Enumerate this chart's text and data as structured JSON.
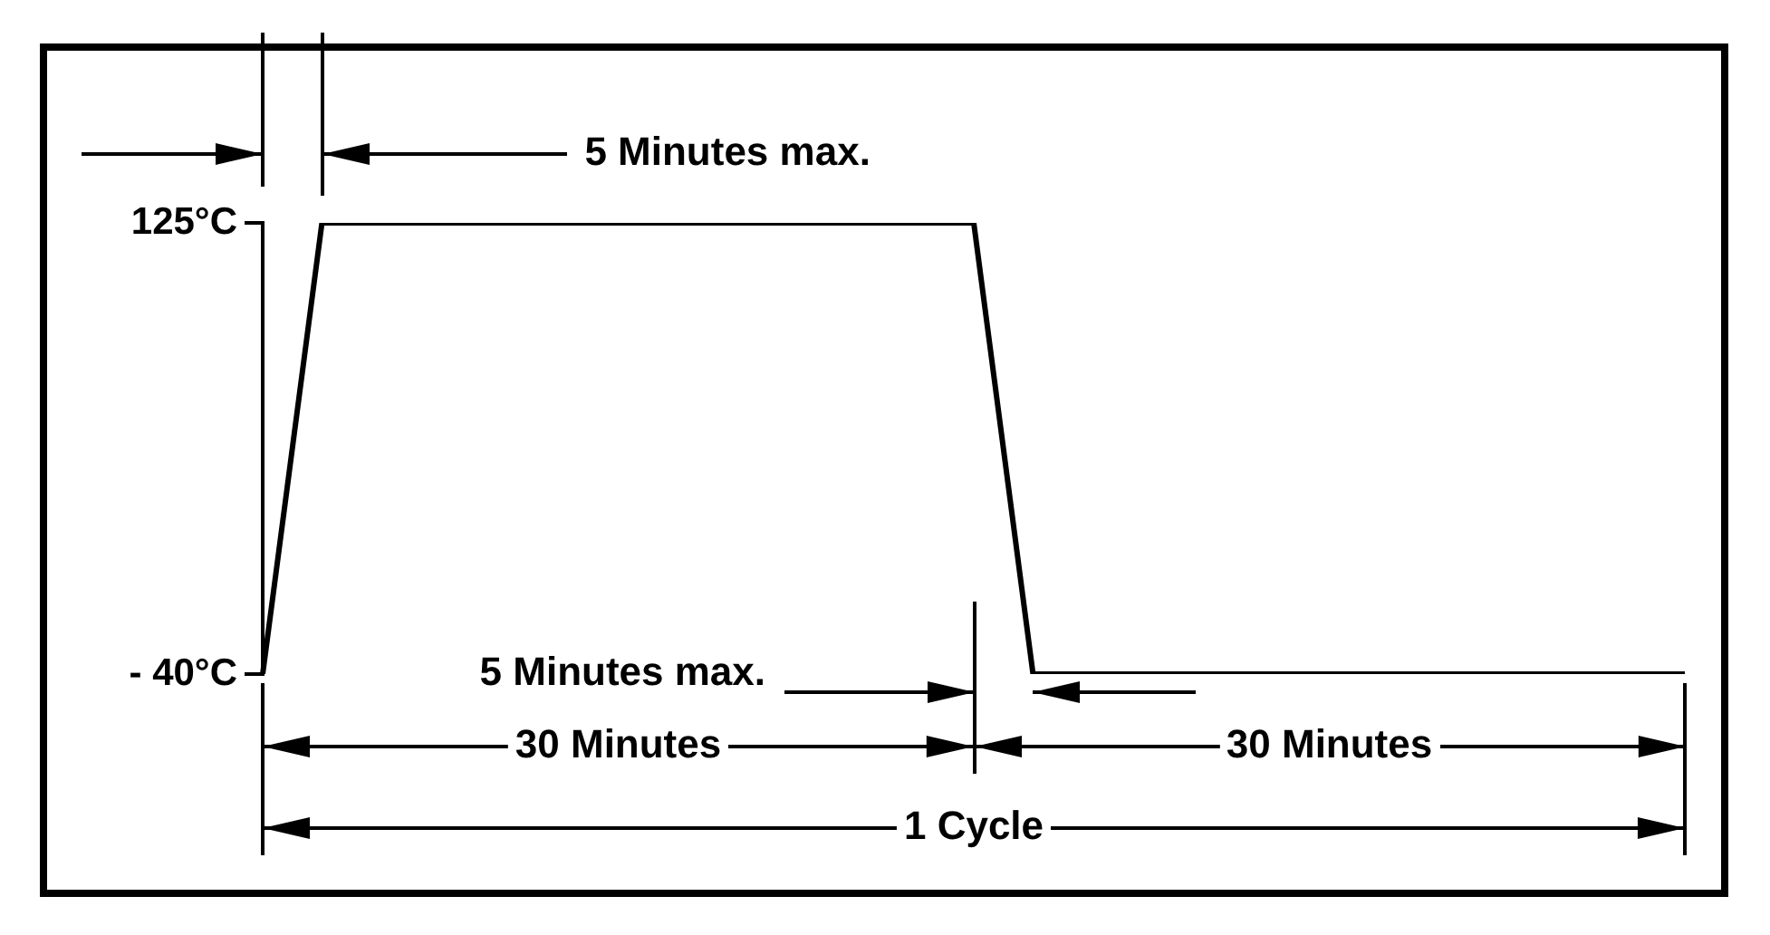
{
  "chart_data": {
    "type": "line",
    "categories": [
      null,
      null,
      null,
      null,
      null,
      null,
      null,
      null,
      null,
      null,
      null,
      null,
      null,
      null,
      null,
      null,
      null,
      null,
      null,
      null,
      null,
      null,
      null,
      null,
      null
    ],
    "series": [
      {
        "color": "#000000",
        "values": [
          -40,
          125,
          125,
          125,
          125,
          125,
          125,
          125,
          125,
          125,
          125,
          125,
          125,
          -40,
          -40,
          -40,
          -40,
          -40,
          -40,
          -40,
          -40,
          -40,
          -40,
          -40,
          -40
        ]
      }
    ],
    "ylim": [
      -40,
      125
    ],
    "yticks": [
      {
        "value": -40,
        "label": "- 40°C"
      },
      {
        "value": 125,
        "label": "125°C"
      }
    ],
    "tick_labels": "y",
    "grid": false,
    "legend": false,
    "marker": "none",
    "line_style": "solid",
    "annotations": [
      "5 Minutes max.",
      "5 Minutes max.",
      "30 Minutes",
      "30 Minutes",
      "1 Cycle"
    ]
  }
}
